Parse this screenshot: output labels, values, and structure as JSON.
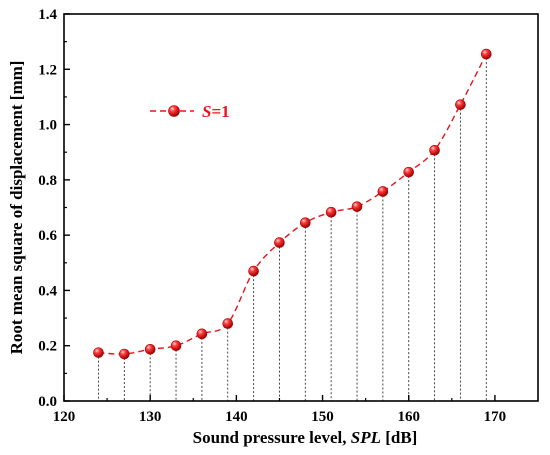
{
  "colors": {
    "series": "#e8141c",
    "marker_fill": "#e8141c",
    "axis": "#000000",
    "drop_line": "#333333"
  },
  "chart_data": {
    "type": "line",
    "title": "",
    "xlabel_parts": [
      "Sound pressure level, ",
      "SPL",
      " [dB]"
    ],
    "ylabel": "Root mean square of displacement [mm]",
    "xlim": [
      120,
      175
    ],
    "ylim": [
      0.0,
      1.4
    ],
    "xticks": [
      "120",
      "130",
      "140",
      "150",
      "160",
      "170"
    ],
    "xtick_values": [
      120,
      130,
      140,
      150,
      160,
      170
    ],
    "yticks": [
      "0.0",
      "0.2",
      "0.4",
      "0.6",
      "0.8",
      "1.0",
      "1.2",
      "1.4"
    ],
    "ytick_values": [
      0.0,
      0.2,
      0.4,
      0.6,
      0.8,
      1.0,
      1.2,
      1.4
    ],
    "grid": false,
    "legend_position": "upper-left",
    "series": [
      {
        "name_parts": [
          "S",
          "=1"
        ],
        "line_style": "dashed",
        "marker": "sphere",
        "drop_lines": true,
        "x": [
          124,
          127,
          130,
          133,
          136,
          139,
          142,
          145,
          148,
          151,
          154,
          157,
          160,
          163,
          166,
          169
        ],
        "y": [
          0.175,
          0.17,
          0.187,
          0.2,
          0.243,
          0.28,
          0.47,
          0.573,
          0.645,
          0.683,
          0.703,
          0.758,
          0.828,
          0.907,
          1.072,
          1.255
        ]
      }
    ]
  }
}
